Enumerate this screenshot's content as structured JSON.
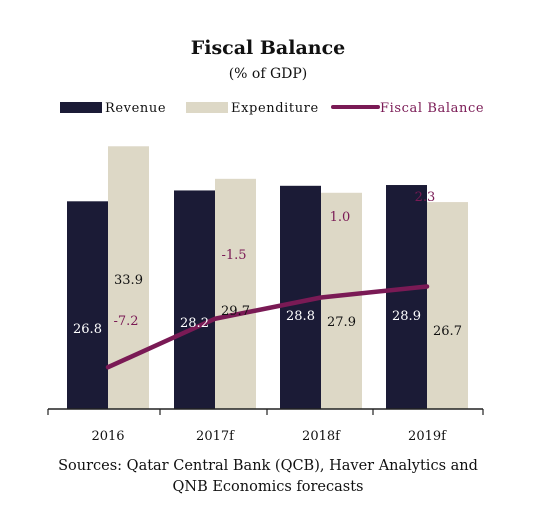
{
  "chart_data": {
    "type": "bar",
    "title": "Fiscal Balance",
    "subtitle": "(% of GDP)",
    "categories": [
      "2016",
      "2017f",
      "2018f",
      "2019f"
    ],
    "series": [
      {
        "name": "Revenue",
        "kind": "bar",
        "color": "#1b1b36",
        "values": [
          26.8,
          28.2,
          28.8,
          28.9
        ]
      },
      {
        "name": "Expenditure",
        "kind": "bar",
        "color": "#ddd8c6",
        "values": [
          33.9,
          29.7,
          27.9,
          26.7
        ]
      },
      {
        "name": "Fiscal Balance",
        "kind": "line",
        "color": "#7a1a55",
        "values": [
          -7.2,
          -1.5,
          1.0,
          2.3
        ]
      }
    ],
    "value_labels": {
      "Revenue": [
        "26.8",
        "28.2",
        "28.8",
        "28.9"
      ],
      "Expenditure": [
        "33.9",
        "29.7",
        "27.9",
        "26.7"
      ],
      "Fiscal Balance": [
        "-7.2",
        "-1.5",
        "1.0",
        "2.3"
      ]
    },
    "legend": "top",
    "grid": false
  },
  "source": {
    "line1": "Sources: Qatar Central Bank (QCB), Haver Analytics and",
    "line2": "QNB Economics forecasts"
  }
}
